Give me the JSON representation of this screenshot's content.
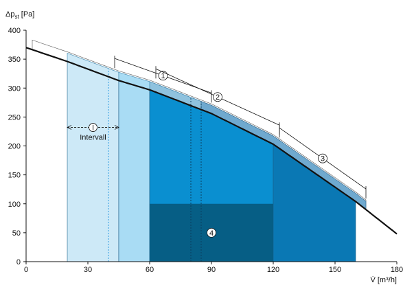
{
  "chart_data": {
    "type": "area",
    "ylabel": "Δp",
    "ylabel_sub": "st",
    "ylabel_unit": " [Pa]",
    "xlabel": "V̇ [m³/h]",
    "xlim": [
      0,
      180
    ],
    "ylim": [
      0,
      400
    ],
    "x_ticks": [
      0,
      30,
      60,
      90,
      120,
      150,
      180
    ],
    "y_ticks": [
      0,
      50,
      100,
      150,
      200,
      250,
      300,
      350,
      400
    ],
    "curve": {
      "x": [
        0,
        20,
        45,
        60,
        90,
        120,
        160,
        180
      ],
      "y": [
        370,
        346,
        313,
        297,
        256,
        203,
        104,
        48
      ]
    },
    "regions": [
      {
        "x": [
          20,
          45
        ],
        "color": "#cde9f7"
      },
      {
        "x": [
          45,
          60
        ],
        "color": "#a9dcf4"
      },
      {
        "x": [
          60,
          120
        ],
        "color": "#0a8fd0"
      },
      {
        "x": [
          120,
          160
        ],
        "color": "#0a78b4"
      }
    ],
    "inner_block": {
      "x": [
        60,
        120
      ],
      "y": [
        0,
        100
      ],
      "color": "#065e85"
    },
    "markers": [
      {
        "label": "1",
        "x_range": [
          43,
          90
        ]
      },
      {
        "label": "2",
        "x_range": [
          63,
          123
        ]
      },
      {
        "label": "3",
        "x_range": [
          123,
          165
        ]
      },
      {
        "label": "4",
        "x": 90,
        "y": 50
      }
    ],
    "interval": {
      "label": "Intervall",
      "symbol": "I",
      "x_range": [
        20,
        45
      ],
      "y": 232
    },
    "dotted_lines": [
      40,
      80,
      85
    ]
  }
}
